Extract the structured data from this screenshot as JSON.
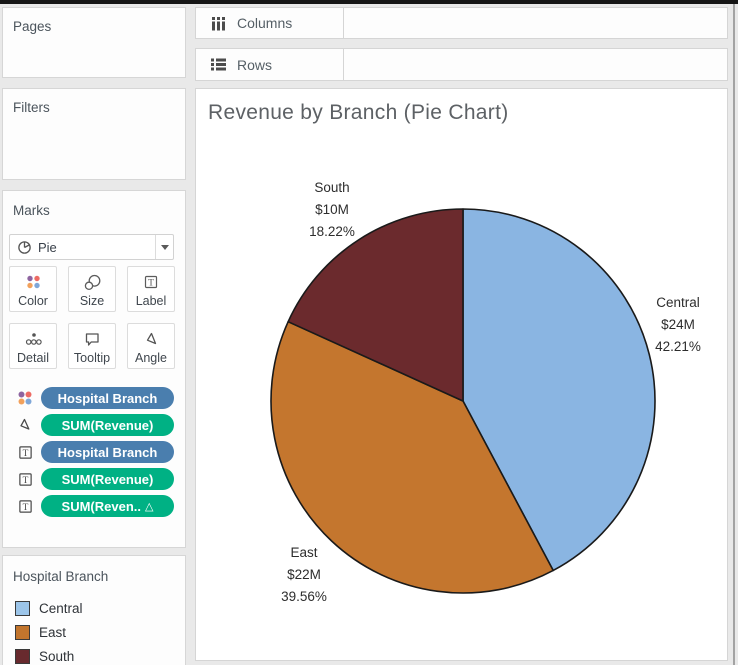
{
  "shelves": {
    "columns": {
      "label": "Columns",
      "icon": "columns-bars-icon"
    },
    "rows": {
      "label": "Rows",
      "icon": "rows-lines-icon"
    }
  },
  "sidebar": {
    "pages": {
      "title": "Pages"
    },
    "filters": {
      "title": "Filters"
    },
    "marks": {
      "title": "Marks",
      "mark_type_selector": {
        "value": "Pie",
        "icon": "pie-mark-icon"
      },
      "buttons": [
        {
          "label": "Color",
          "icon": "color-dots-icon"
        },
        {
          "label": "Size",
          "icon": "size-circles-icon"
        },
        {
          "label": "Label",
          "icon": "text-label-icon"
        },
        {
          "label": "Detail",
          "icon": "detail-dots-icon"
        },
        {
          "label": "Tooltip",
          "icon": "tooltip-bubble-icon"
        },
        {
          "label": "Angle",
          "icon": "angle-triangle-icon"
        }
      ],
      "pills": [
        {
          "label": "Hospital Branch",
          "role": "dimension",
          "color": "#4a7eae",
          "icon": "color-dots-icon",
          "badge": ""
        },
        {
          "label": "SUM(Revenue)",
          "role": "measure",
          "color": "#00b184",
          "icon": "angle-triangle-icon",
          "badge": ""
        },
        {
          "label": "Hospital Branch",
          "role": "dimension",
          "color": "#4a7eae",
          "icon": "text-label-icon",
          "badge": ""
        },
        {
          "label": "SUM(Revenue)",
          "role": "measure",
          "color": "#00b184",
          "icon": "text-label-icon",
          "badge": ""
        },
        {
          "label": "SUM(Reven..",
          "role": "measure",
          "color": "#00b184",
          "icon": "text-label-icon",
          "badge": "△"
        }
      ]
    },
    "legend": {
      "title": "Hospital Branch",
      "items": [
        {
          "label": "Central",
          "color": "#9cc5e9"
        },
        {
          "label": "East",
          "color": "#c2752d"
        },
        {
          "label": "South",
          "color": "#682a2e"
        }
      ]
    }
  },
  "chart_data": {
    "type": "pie",
    "title": "Revenue by Branch (Pie Chart)",
    "unit": "USD millions",
    "start_angle": "12 o'clock",
    "direction": "clockwise",
    "outline_color": "#1a1a1a",
    "slices": [
      {
        "category": "Central",
        "value_label": "$24M",
        "value_millions": 24,
        "percent": 42.21,
        "percent_label": "42.21%",
        "color": "#8ab5e2"
      },
      {
        "category": "East",
        "value_label": "$22M",
        "value_millions": 22,
        "percent": 39.56,
        "percent_label": "39.56%",
        "color": "#c4762e"
      },
      {
        "category": "South",
        "value_label": "$10M",
        "value_millions": 10,
        "percent": 18.22,
        "percent_label": "18.22%",
        "color": "#6b2a2d"
      }
    ]
  }
}
